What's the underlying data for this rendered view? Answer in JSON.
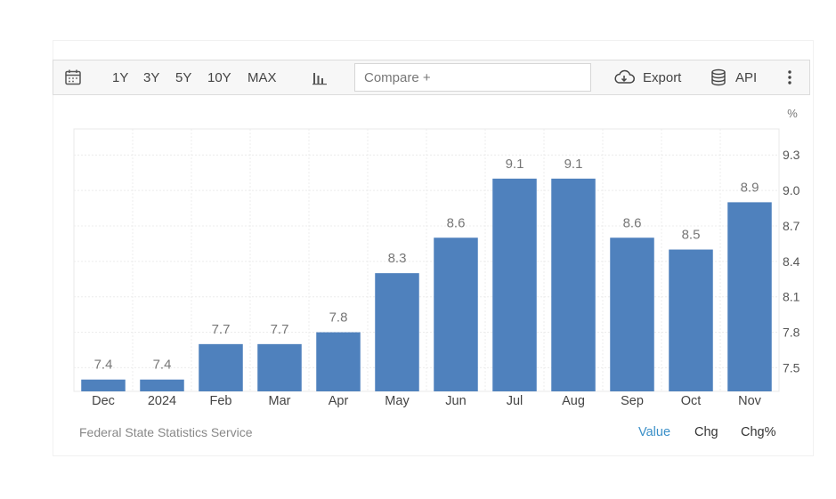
{
  "toolbar": {
    "calendar_icon": "calendar-icon",
    "ranges": [
      "1Y",
      "3Y",
      "5Y",
      "10Y",
      "MAX"
    ],
    "chart_type_icon": "bar-chart-icon",
    "compare_placeholder": "Compare +",
    "export_label": "Export",
    "api_label": "API"
  },
  "footer": {
    "source": "Federal State Statistics Service",
    "value_label": "Value",
    "chg_label": "Chg",
    "chgpct_label": "Chg%"
  },
  "colors": {
    "bar": "#4f81bd",
    "active_link": "#3a8fc8"
  },
  "chart_data": {
    "type": "bar",
    "unit_label": "%",
    "categories": [
      "Dec",
      "2024",
      "Feb",
      "Mar",
      "Apr",
      "May",
      "Jun",
      "Jul",
      "Aug",
      "Sep",
      "Oct",
      "Nov"
    ],
    "values": [
      7.4,
      7.4,
      7.7,
      7.7,
      7.8,
      8.3,
      8.6,
      9.1,
      9.1,
      8.6,
      8.5,
      8.9
    ],
    "data_labels": [
      "7.4",
      "7.4",
      "7.7",
      "7.7",
      "7.8",
      "8.3",
      "8.6",
      "9.1",
      "9.1",
      "8.6",
      "8.5",
      "8.9"
    ],
    "yticks": [
      7.5,
      7.8,
      8.1,
      8.4,
      8.7,
      9.0,
      9.3
    ],
    "ytick_labels": [
      "7.5",
      "7.8",
      "8.1",
      "8.4",
      "8.7",
      "9.0",
      "9.3"
    ],
    "ylim": [
      7.3,
      9.52
    ],
    "y_axis_position": "right",
    "grid": true
  }
}
